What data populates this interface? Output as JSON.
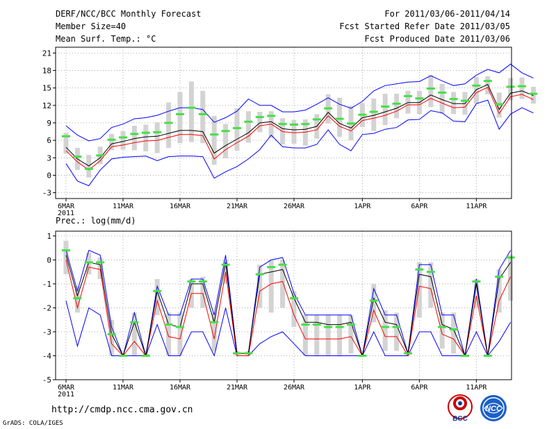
{
  "header": {
    "title": "DERF/NCC/BCC Monthly Forecast",
    "member_size": "Member Size=40",
    "variable": "Mean Surf. Temp.: °C",
    "period": "For 2011/03/06-2011/04/14",
    "started": "Fcst Started Refer Date 2011/03/05",
    "produced": "Fcst Produced Date 2011/03/06"
  },
  "footer": {
    "url": "http://cmdp.ncc.cma.gov.cn",
    "grads": "GrADS: COLA/IGES",
    "logo_bcc": "BCC",
    "logo_ncc": "NCC"
  },
  "colors": {
    "mean": "#000000",
    "median": "#ff0000",
    "envelope": "#0000ff",
    "box": "#d3d3d3",
    "obs": "#44e044",
    "grid": "#999999"
  },
  "chart_data": [
    {
      "type": "line",
      "title": "Mean Surf. Temp.: °C",
      "ylim": [
        -4,
        22
      ],
      "yticks": [
        21,
        18,
        15,
        12,
        9,
        6,
        3,
        0,
        -3
      ],
      "xticks": [
        {
          "day": 0,
          "label": "6MAR",
          "sub": "2011"
        },
        {
          "day": 5,
          "label": "11MAR"
        },
        {
          "day": 10,
          "label": "16MAR"
        },
        {
          "day": 15,
          "label": "21MAR"
        },
        {
          "day": 20,
          "label": "26MAR"
        },
        {
          "day": 26,
          "label": "1APR"
        },
        {
          "day": 31,
          "label": "6APR"
        },
        {
          "day": 36,
          "label": "11APR"
        }
      ],
      "series": [
        {
          "name": "ensemble-mean",
          "values": [
            4.8,
            2.8,
            1.6,
            3.0,
            5.4,
            5.8,
            6.3,
            6.6,
            6.7,
            7.2,
            7.7,
            7.7,
            7.5,
            3.8,
            5.1,
            6.2,
            7.3,
            9.0,
            9.2,
            8.0,
            7.8,
            7.9,
            8.4,
            10.8,
            8.9,
            8.1,
            9.9,
            10.3,
            10.9,
            11.5,
            12.5,
            12.5,
            13.8,
            13.0,
            12.3,
            12.3,
            14.7,
            15.6,
            11.3,
            14.1,
            14.5,
            13.7
          ]
        },
        {
          "name": "ensemble-median",
          "values": [
            4.2,
            2.3,
            0.9,
            2.5,
            4.9,
            5.2,
            5.6,
            5.9,
            6.0,
            6.5,
            7.0,
            7.0,
            6.8,
            2.8,
            4.4,
            5.6,
            6.7,
            8.5,
            8.8,
            7.5,
            7.3,
            7.4,
            7.8,
            10.2,
            8.4,
            7.6,
            9.4,
            9.8,
            10.3,
            11.0,
            12.1,
            12.1,
            13.2,
            12.4,
            11.6,
            11.7,
            14.2,
            15.1,
            10.6,
            13.5,
            13.9,
            13.0
          ]
        },
        {
          "name": "max-envelope",
          "values": [
            8.5,
            6.9,
            5.9,
            6.3,
            8.2,
            8.8,
            9.7,
            9.9,
            10.3,
            11.0,
            11.6,
            11.6,
            11.3,
            9.1,
            9.9,
            11.0,
            13.1,
            12.0,
            12.0,
            10.9,
            10.9,
            11.2,
            12.2,
            13.3,
            12.2,
            11.5,
            12.7,
            14.5,
            15.4,
            15.7,
            16.0,
            16.1,
            17.1,
            16.2,
            15.4,
            15.7,
            17.2,
            18.2,
            17.6,
            19.1,
            17.6,
            16.7
          ]
        },
        {
          "name": "min-envelope",
          "values": [
            2.0,
            -1.0,
            -1.8,
            0.9,
            2.8,
            3.1,
            3.2,
            3.3,
            2.5,
            3.2,
            3.3,
            3.3,
            3.2,
            -0.5,
            0.6,
            1.5,
            2.8,
            4.4,
            6.9,
            4.9,
            4.7,
            4.7,
            5.3,
            7.8,
            5.3,
            4.2,
            7.0,
            7.2,
            7.9,
            8.2,
            9.5,
            9.6,
            11.1,
            10.7,
            9.3,
            9.2,
            12.3,
            12.9,
            7.9,
            10.5,
            11.6,
            10.7
          ]
        },
        {
          "name": "box-top",
          "values": [
            7.3,
            4.7,
            3.5,
            4.9,
            7.1,
            7.6,
            8.5,
            8.7,
            9.1,
            12.5,
            14.3,
            16.1,
            14.5,
            10.2,
            8.8,
            11.5,
            11.0,
            10.9,
            11.0,
            9.8,
            9.5,
            9.6,
            10.5,
            13.9,
            13.3,
            11.9,
            12.4,
            13.2,
            14.0,
            14.0,
            14.5,
            14.5,
            17.2,
            15.7,
            14.3,
            14.3,
            16.9,
            17.0,
            14.2,
            16.7,
            16.8,
            15.2
          ]
        },
        {
          "name": "box-bottom",
          "values": [
            3.7,
            0.9,
            -0.4,
            1.9,
            4.3,
            4.4,
            4.3,
            4.1,
            3.8,
            4.7,
            5.5,
            5.7,
            5.5,
            1.8,
            2.9,
            4.2,
            5.6,
            7.4,
            6.4,
            5.3,
            5.4,
            5.1,
            6.3,
            8.9,
            6.6,
            6.0,
            8.3,
            7.6,
            8.6,
            9.8,
            10.6,
            10.5,
            11.7,
            10.6,
            10.5,
            10.4,
            12.3,
            13.9,
            9.9,
            12.9,
            13.1,
            12.3
          ]
        },
        {
          "name": "observed",
          "values": [
            6.7,
            3.2,
            1.1,
            3.4,
            6.1,
            6.5,
            7.1,
            7.3,
            7.4,
            9.0,
            10.5,
            11.6,
            10.5,
            7.0,
            7.6,
            8.1,
            9.2,
            10.0,
            10.2,
            8.8,
            8.7,
            8.8,
            9.6,
            11.5,
            9.7,
            8.9,
            10.4,
            10.9,
            11.8,
            12.3,
            13.6,
            13.2,
            14.9,
            14.2,
            13.1,
            12.8,
            15.4,
            16.2,
            12.2,
            15.2,
            15.3,
            14.0
          ]
        }
      ]
    },
    {
      "type": "line",
      "title": "Prec.: log(mm/d)",
      "ylim": [
        -5,
        1.2
      ],
      "yticks": [
        1,
        0,
        -1,
        -2,
        -3,
        -4,
        -5
      ],
      "xticks": [
        {
          "day": 0,
          "label": "6MAR",
          "sub": "2011"
        },
        {
          "day": 5,
          "label": "11MAR"
        },
        {
          "day": 10,
          "label": "16MAR"
        },
        {
          "day": 15,
          "label": "21MAR"
        },
        {
          "day": 20,
          "label": "26MAR"
        },
        {
          "day": 26,
          "label": "1APR"
        },
        {
          "day": 31,
          "label": "6APR"
        },
        {
          "day": 36,
          "label": "11APR"
        }
      ],
      "series": [
        {
          "name": "ensemble-mean",
          "values": [
            0.2,
            -1.5,
            -0.1,
            -0.2,
            -3.1,
            -4.0,
            -2.6,
            -4.0,
            -1.3,
            -2.7,
            -2.8,
            -1.0,
            -1.0,
            -2.6,
            -0.1,
            -3.9,
            -3.9,
            -0.6,
            -0.5,
            -0.4,
            -1.6,
            -2.6,
            -2.6,
            -2.7,
            -2.7,
            -2.6,
            -4.0,
            -1.6,
            -2.6,
            -2.7,
            -3.9,
            -0.6,
            -0.7,
            -2.7,
            -2.9,
            -4.0,
            -1.0,
            -4.0,
            -0.8,
            -0.1
          ]
        },
        {
          "name": "ensemble-median",
          "values": [
            0.0,
            -2.0,
            -0.3,
            -0.4,
            -3.5,
            -4.0,
            -3.4,
            -4.0,
            -1.7,
            -3.2,
            -3.3,
            -1.4,
            -1.4,
            -3.3,
            -0.5,
            -4.0,
            -4.0,
            -1.3,
            -1.0,
            -0.9,
            -2.3,
            -3.3,
            -3.3,
            -3.3,
            -3.3,
            -3.2,
            -4.0,
            -2.1,
            -3.2,
            -3.2,
            -4.0,
            -1.1,
            -1.2,
            -3.1,
            -3.3,
            -4.0,
            -1.5,
            -4.0,
            -1.7,
            -0.7
          ]
        },
        {
          "name": "max-envelope",
          "values": [
            0.4,
            -1.3,
            0.4,
            0.2,
            -2.8,
            -4.0,
            -2.2,
            -4.0,
            -1.1,
            -2.3,
            -2.3,
            -0.8,
            -0.8,
            -2.3,
            0.2,
            -3.9,
            -3.9,
            -0.3,
            0.0,
            0.1,
            -1.4,
            -2.3,
            -2.3,
            -2.3,
            -2.3,
            -2.3,
            -4.0,
            -1.2,
            -2.3,
            -2.3,
            -3.9,
            -0.2,
            -0.2,
            -2.3,
            -2.3,
            -4.0,
            -0.8,
            -4.0,
            -0.4,
            0.4
          ]
        },
        {
          "name": "min-envelope",
          "values": [
            -1.7,
            -3.6,
            -2.0,
            -2.3,
            -4.0,
            -4.0,
            -4.0,
            -4.0,
            -2.7,
            -4.0,
            -4.0,
            -3.0,
            -3.0,
            -4.0,
            -2.0,
            -4.0,
            -4.0,
            -3.5,
            -3.2,
            -3.0,
            -3.5,
            -4.0,
            -4.0,
            -4.0,
            -4.0,
            -4.0,
            -4.0,
            -3.0,
            -4.0,
            -4.0,
            -4.0,
            -3.0,
            -3.0,
            -4.0,
            -4.0,
            -4.0,
            -3.0,
            -4.0,
            -3.4,
            -2.6
          ]
        },
        {
          "name": "box-top",
          "values": [
            0.8,
            -1.1,
            0.3,
            0.1,
            -2.5,
            -4.0,
            -2.2,
            -3.8,
            -0.8,
            -2.2,
            -2.2,
            -0.8,
            -0.7,
            -2.2,
            0.0,
            -3.8,
            -3.8,
            -0.2,
            0.0,
            0.0,
            -1.3,
            -2.3,
            -2.3,
            -2.3,
            -2.3,
            -2.3,
            -4.0,
            -1.0,
            -2.1,
            -2.2,
            -3.8,
            -0.1,
            -0.1,
            -2.2,
            -2.2,
            -4.0,
            -0.8,
            -4.0,
            -0.4,
            0.2
          ]
        },
        {
          "name": "box-bottom",
          "values": [
            -0.6,
            -2.2,
            -0.6,
            -0.8,
            -4.0,
            -4.0,
            -4.0,
            -4.0,
            -2.3,
            -4.0,
            -4.0,
            -2.0,
            -2.0,
            -3.8,
            -1.0,
            -4.0,
            -4.0,
            -2.0,
            -2.2,
            -2.0,
            -2.8,
            -4.0,
            -4.0,
            -4.0,
            -4.0,
            -3.9,
            -4.0,
            -2.6,
            -3.8,
            -3.8,
            -4.0,
            -2.4,
            -2.0,
            -3.7,
            -3.9,
            -4.0,
            -2.0,
            -4.0,
            -2.2,
            -1.7
          ]
        },
        {
          "name": "observed",
          "values": [
            0.4,
            -1.6,
            -0.1,
            -0.1,
            -3.1,
            -4.0,
            -2.6,
            -4.0,
            -1.3,
            -2.7,
            -2.8,
            -0.9,
            -0.9,
            -2.6,
            -0.2,
            -3.9,
            -3.9,
            -0.6,
            -0.3,
            -0.2,
            -1.6,
            -2.7,
            -2.7,
            -2.8,
            -2.8,
            -2.7,
            -4.0,
            -1.7,
            -2.8,
            -2.8,
            -3.9,
            -0.4,
            -0.5,
            -2.8,
            -2.9,
            -4.0,
            -0.9,
            -4.0,
            -0.7,
            0.1
          ]
        }
      ]
    }
  ]
}
